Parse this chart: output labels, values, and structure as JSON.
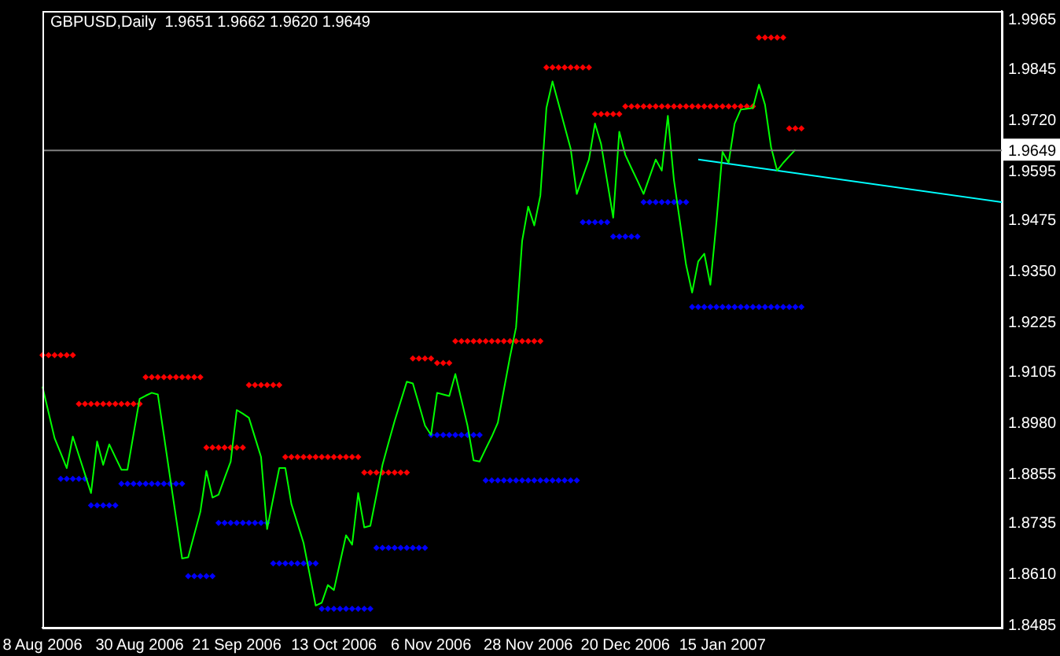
{
  "chart_data": {
    "type": "scatter",
    "title": "GBPUSD,Daily  1.9651 1.9662 1.9620 1.9649",
    "categories": [
      "8 Aug 2006",
      null,
      null,
      null,
      null,
      null,
      null,
      null,
      null,
      null,
      null,
      null,
      null,
      null,
      null,
      null,
      "30 Aug 2006",
      null,
      null,
      null,
      null,
      null,
      null,
      null,
      null,
      null,
      null,
      null,
      null,
      null,
      null,
      null,
      "21 Sep 2006",
      null,
      null,
      null,
      null,
      null,
      null,
      null,
      null,
      null,
      null,
      null,
      null,
      null,
      null,
      null,
      "13 Oct 2006",
      null,
      null,
      null,
      null,
      null,
      null,
      null,
      null,
      null,
      null,
      null,
      null,
      null,
      null,
      null,
      "6 Nov 2006",
      null,
      null,
      null,
      null,
      null,
      null,
      null,
      null,
      null,
      null,
      null,
      null,
      null,
      null,
      null,
      "28 Nov 2006",
      null,
      null,
      null,
      null,
      null,
      null,
      null,
      null,
      null,
      null,
      null,
      null,
      null,
      null,
      null,
      "20 Dec 2006",
      null,
      null,
      null,
      null,
      null,
      null,
      null,
      null,
      null,
      null,
      null,
      null,
      null,
      null,
      null,
      "15 Jan 2007",
      null,
      null,
      null,
      null,
      null,
      null,
      null,
      null,
      null,
      null,
      null,
      null,
      null,
      null,
      null,
      null,
      null,
      null,
      null,
      null,
      null,
      null,
      null,
      null,
      null,
      null,
      null,
      null,
      null,
      null,
      null,
      null,
      null,
      null,
      null,
      null,
      null,
      null,
      null,
      null,
      null,
      null,
      null,
      null,
      null,
      null
    ],
    "series": [
      {
        "type": "line",
        "color": "#00ff00",
        "marker": "none",
        "values": [
          1.907,
          1.9007,
          1.8944,
          1.8908,
          1.8871,
          1.8948,
          1.8902,
          1.8856,
          1.881,
          1.8936,
          1.8879,
          1.8929,
          1.8898,
          1.8867,
          1.8867,
          1.8954,
          1.904,
          1.9048,
          1.9055,
          1.9051,
          1.8951,
          1.885,
          1.875,
          1.865,
          1.8653,
          1.8709,
          1.8764,
          1.8864,
          1.8799,
          1.8806,
          1.8847,
          1.8887,
          1.9013,
          1.9004,
          1.8994,
          1.8946,
          1.8898,
          1.8722,
          1.8797,
          1.8871,
          1.8871,
          1.8783,
          1.8736,
          1.8688,
          1.8612,
          1.8535,
          1.8542,
          1.8585,
          1.8573,
          1.864,
          1.8707,
          1.8684,
          1.881,
          1.8726,
          1.873,
          1.8805,
          1.8879,
          1.8933,
          1.8986,
          1.9034,
          1.9082,
          1.9078,
          1.9027,
          1.8975,
          1.8952,
          1.9055,
          1.9051,
          1.9047,
          1.9101,
          1.9038,
          1.8975,
          1.889,
          1.8887,
          1.8918,
          1.8948,
          1.8982,
          1.9063,
          1.9143,
          1.9215,
          1.9426,
          1.951,
          1.9464,
          1.9537,
          1.9751,
          1.9816,
          1.9761,
          1.9706,
          1.9651,
          1.9541,
          1.9583,
          1.9625,
          1.9713,
          1.9663,
          1.9573,
          1.9483,
          1.9693,
          1.9636,
          1.9604,
          1.9573,
          1.9541,
          1.9583,
          1.9625,
          1.9598,
          1.9732,
          1.9575,
          1.9472,
          1.9368,
          1.93,
          1.9376,
          1.9395,
          1.9319,
          1.9472,
          1.9644,
          1.9617,
          1.9713,
          1.9747,
          1.9749,
          1.9751,
          1.9808,
          1.9759,
          1.9655,
          1.9598,
          1.9617,
          1.9633,
          1.9649,
          null,
          null,
          null,
          null,
          null,
          null,
          null,
          null,
          null,
          null,
          null,
          null,
          null,
          null,
          null,
          null,
          null,
          null,
          null,
          null,
          null,
          null,
          null,
          null,
          null,
          null,
          null,
          null,
          null,
          null,
          null,
          null,
          null,
          null
        ]
      },
      {
        "color": "#ff0000",
        "marker": "diamond",
        "values": [
          1.9147,
          1.9147,
          1.9147,
          1.9147,
          1.9147,
          1.9147,
          1.9028,
          1.9028,
          1.9028,
          1.9028,
          1.9028,
          1.9028,
          1.9028,
          1.9028,
          1.9028,
          1.9028,
          1.9028,
          1.9093,
          1.9093,
          1.9093,
          1.9093,
          1.9093,
          1.9093,
          1.9093,
          1.9093,
          1.9093,
          1.9093,
          1.8921,
          1.8921,
          1.8921,
          1.8921,
          1.8921,
          1.8921,
          1.8921,
          1.9074,
          1.9074,
          1.9074,
          1.9074,
          1.9074,
          1.9074,
          1.8898,
          1.8898,
          1.8898,
          1.8898,
          1.8898,
          1.8898,
          1.8898,
          1.8898,
          1.8898,
          1.8898,
          1.8898,
          1.8898,
          1.8898,
          1.886,
          1.886,
          1.886,
          1.886,
          1.886,
          1.886,
          1.886,
          1.886,
          1.9139,
          1.9139,
          1.9139,
          1.9139,
          1.9128,
          1.9128,
          1.9128,
          1.9181,
          1.9181,
          1.9181,
          1.9181,
          1.9181,
          1.9181,
          1.9181,
          1.9181,
          1.9181,
          1.9181,
          1.9181,
          1.9181,
          1.9181,
          1.9181,
          1.9181,
          1.985,
          1.985,
          1.985,
          1.985,
          1.985,
          1.985,
          1.985,
          1.985,
          1.9736,
          1.9736,
          1.9736,
          1.9736,
          1.9736,
          1.9755,
          1.9755,
          1.9755,
          1.9755,
          1.9755,
          1.9755,
          1.9755,
          1.9755,
          1.9755,
          1.9755,
          1.9755,
          1.9755,
          1.9755,
          1.9755,
          1.9755,
          1.9755,
          1.9755,
          1.9755,
          1.9755,
          1.9755,
          1.9755,
          1.9755,
          1.9923,
          1.9923,
          1.9923,
          1.9923,
          1.9923,
          1.9701,
          1.9701,
          1.9701,
          null,
          null,
          null,
          null,
          null,
          null,
          null,
          null,
          null,
          null,
          null,
          null,
          null,
          null,
          null,
          null,
          null,
          null,
          null,
          null,
          null,
          null,
          null,
          null,
          null,
          null,
          null,
          null,
          null,
          null,
          null,
          null,
          null
        ]
      },
      {
        "color": "#0000ff",
        "marker": "diamond",
        "values": [
          null,
          null,
          null,
          1.8845,
          1.8845,
          1.8845,
          1.8845,
          1.8845,
          1.878,
          1.878,
          1.878,
          1.878,
          1.878,
          1.8833,
          1.8833,
          1.8833,
          1.8833,
          1.8833,
          1.8833,
          1.8833,
          1.8833,
          1.8833,
          1.8833,
          1.8833,
          1.8607,
          1.8607,
          1.8607,
          1.8607,
          1.8607,
          1.8737,
          1.8737,
          1.8737,
          1.8737,
          1.8737,
          1.8737,
          1.8737,
          1.8737,
          1.8737,
          1.8638,
          1.8638,
          1.8638,
          1.8638,
          1.8638,
          1.8638,
          1.8638,
          1.8638,
          1.8527,
          1.8527,
          1.8527,
          1.8527,
          1.8527,
          1.8527,
          1.8527,
          1.8527,
          1.8527,
          1.8676,
          1.8676,
          1.8676,
          1.8676,
          1.8676,
          1.8676,
          1.8676,
          1.8676,
          1.8676,
          1.8952,
          1.8952,
          1.8952,
          1.8952,
          1.8952,
          1.8952,
          1.8952,
          1.8952,
          1.8952,
          1.8841,
          1.8841,
          1.8841,
          1.8841,
          1.8841,
          1.8841,
          1.8841,
          1.8841,
          1.8841,
          1.8841,
          1.8841,
          1.8841,
          1.8841,
          1.8841,
          1.8841,
          1.8841,
          1.9472,
          1.9472,
          1.9472,
          1.9472,
          1.9472,
          1.9437,
          1.9437,
          1.9437,
          1.9437,
          1.9437,
          1.9521,
          1.9521,
          1.9521,
          1.9521,
          1.9521,
          1.9521,
          1.9521,
          1.9521,
          1.9265,
          1.9265,
          1.9265,
          1.9265,
          1.9265,
          1.9265,
          1.9265,
          1.9265,
          1.9265,
          1.9265,
          1.9265,
          1.9265,
          1.9265,
          1.9265,
          1.9265,
          1.9265,
          1.9265,
          1.9265,
          1.9265,
          null,
          null,
          null,
          null,
          null,
          null,
          null,
          null,
          null,
          null,
          null,
          null,
          null,
          null,
          null,
          null,
          null,
          null,
          null,
          null,
          null,
          null,
          null,
          null,
          null,
          null,
          null,
          null,
          null,
          null,
          null,
          null,
          null
        ]
      },
      {
        "type": "line",
        "color": "#00ffff",
        "marker": "none",
        "values": [
          null,
          null,
          null,
          null,
          null,
          null,
          null,
          null,
          null,
          null,
          null,
          null,
          null,
          null,
          null,
          null,
          null,
          null,
          null,
          null,
          null,
          null,
          null,
          null,
          null,
          null,
          null,
          null,
          null,
          null,
          null,
          null,
          null,
          null,
          null,
          null,
          null,
          null,
          null,
          null,
          null,
          null,
          null,
          null,
          null,
          null,
          null,
          null,
          null,
          null,
          null,
          null,
          null,
          null,
          null,
          null,
          null,
          null,
          null,
          null,
          null,
          null,
          null,
          null,
          null,
          null,
          null,
          null,
          null,
          null,
          null,
          null,
          null,
          null,
          null,
          null,
          null,
          null,
          null,
          null,
          null,
          null,
          null,
          null,
          null,
          null,
          null,
          null,
          null,
          null,
          null,
          null,
          null,
          null,
          null,
          null,
          null,
          null,
          null,
          null,
          null,
          null,
          null,
          null,
          null,
          null,
          null,
          null,
          1.9625,
          null,
          null,
          null,
          null,
          null,
          null,
          null,
          null,
          null,
          null,
          null,
          null,
          null,
          null,
          null,
          null,
          null,
          null,
          null,
          null,
          null,
          null,
          null,
          null,
          null,
          null,
          null,
          null,
          null,
          null,
          null,
          null,
          null,
          null,
          null,
          null,
          null,
          null,
          null,
          null,
          null,
          null,
          null,
          null,
          null,
          null,
          null,
          null,
          null,
          1.9521
        ]
      }
    ],
    "ylim": [
      1.8481,
      1.9988
    ],
    "yticks": [
      1.9965,
      1.9845,
      {
        "value": 1.972,
        "label": "1.9720"
      },
      1.9595,
      1.9475,
      {
        "value": 1.935,
        "label": "1.9350"
      },
      1.9225,
      1.9105,
      {
        "value": 1.898,
        "label": "1.8980"
      },
      1.8855,
      1.8735,
      {
        "value": 1.861,
        "label": "1.8610"
      },
      1.8485
    ],
    "ref_lines": [
      {
        "axis": "y",
        "value": 1.9649,
        "label": "1.9649",
        "color": "#808080"
      }
    ],
    "grid": false,
    "legend": false
  }
}
